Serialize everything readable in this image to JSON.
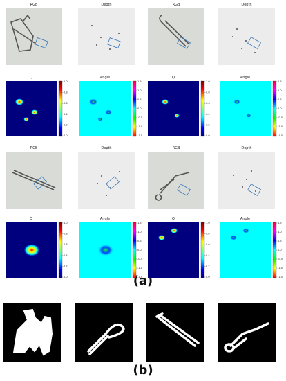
{
  "panel_a": {
    "label": "(a)",
    "titles": [
      [
        "RGB",
        "Depth",
        "RGB",
        "Depth"
      ],
      [
        "Q",
        "Angle",
        "Q",
        "Angle"
      ],
      [
        "RGB",
        "Depth",
        "RGB",
        "Depth"
      ],
      [
        "Q",
        "Angle",
        "Q",
        "Angle"
      ]
    ],
    "q_colorbar_ticks": [
      "1.0",
      "0.8",
      "0.6",
      "0.4",
      "0.2",
      "0.0"
    ],
    "angle_colorbar_ticks": [
      "1.5",
      "1.0",
      "0.5",
      "0.0",
      "-0.5",
      "-1.0",
      "-1.5"
    ]
  },
  "panel_b": {
    "label": "(b)"
  }
}
